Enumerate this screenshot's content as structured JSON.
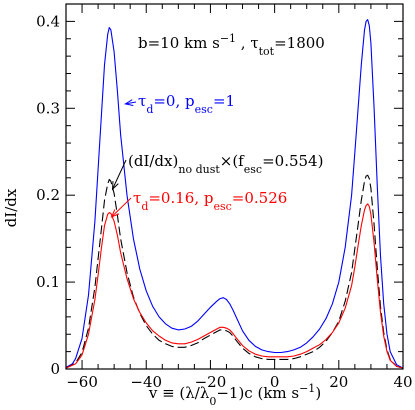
{
  "chart_data": {
    "type": "line",
    "title": "",
    "xlabel": "v ≡ (λ/λ0−1)c (km s⁻¹)",
    "ylabel": "dI/dx",
    "xlim": [
      -65,
      40
    ],
    "ylim": [
      0,
      0.42
    ],
    "xticks": [
      -60,
      -40,
      -20,
      0,
      20,
      40
    ],
    "xtick_labels": [
      "−60",
      "−40",
      "−20",
      "0",
      "20",
      "40"
    ],
    "yticks": [
      0,
      0.1,
      0.2,
      0.3,
      0.4
    ],
    "ytick_labels": [
      "0",
      "0.1",
      "0.2",
      "0.3",
      "0.4"
    ],
    "grid": false,
    "annotations": {
      "params": "b=10 km s⁻¹ , τtot=1800",
      "blue": "τd=0, pesc=1",
      "black": "(dI/dx)no dust×(fesc=0.554)",
      "red": "τd=0.16, pesc=0.526"
    },
    "series": [
      {
        "name": "τd=0, pesc=1",
        "color": "#0000ff",
        "dash": "solid",
        "x": [
          -65,
          -63,
          -62,
          -60,
          -58,
          -56,
          -55,
          -54,
          -53,
          -52,
          -51.5,
          -51,
          -50,
          -49,
          -48,
          -46,
          -44,
          -42,
          -40,
          -38,
          -36,
          -34,
          -32,
          -30,
          -28,
          -26,
          -24,
          -22,
          -20,
          -18,
          -17,
          -16,
          -15,
          -14,
          -13,
          -12,
          -10,
          -8,
          -6,
          -4,
          -2,
          0,
          2,
          4,
          6,
          8,
          10,
          12,
          14,
          16,
          18,
          20,
          22,
          24,
          25,
          26,
          27,
          28,
          28.5,
          29,
          29.5,
          30,
          31,
          32,
          33,
          34,
          35,
          36,
          38,
          40
        ],
        "y": [
          0.002,
          0.006,
          0.012,
          0.035,
          0.085,
          0.17,
          0.23,
          0.29,
          0.35,
          0.385,
          0.393,
          0.39,
          0.365,
          0.32,
          0.27,
          0.2,
          0.15,
          0.115,
          0.09,
          0.072,
          0.06,
          0.052,
          0.047,
          0.045,
          0.046,
          0.049,
          0.055,
          0.063,
          0.071,
          0.078,
          0.081,
          0.082,
          0.08,
          0.075,
          0.068,
          0.06,
          0.044,
          0.033,
          0.026,
          0.022,
          0.02,
          0.019,
          0.019,
          0.02,
          0.022,
          0.025,
          0.03,
          0.037,
          0.046,
          0.058,
          0.075,
          0.1,
          0.14,
          0.2,
          0.25,
          0.3,
          0.35,
          0.39,
          0.4,
          0.402,
          0.395,
          0.375,
          0.3,
          0.21,
          0.13,
          0.075,
          0.04,
          0.02,
          0.005,
          0.001
        ]
      },
      {
        "name": "(dI/dx)no dust×(fesc=0.554)",
        "color": "#000000",
        "dash": "dashed",
        "x": [
          -65,
          -62,
          -60,
          -58,
          -56,
          -55,
          -54,
          -53,
          -52,
          -51.5,
          -51,
          -50,
          -49,
          -48,
          -46,
          -44,
          -42,
          -40,
          -38,
          -36,
          -34,
          -32,
          -30,
          -28,
          -26,
          -24,
          -22,
          -20,
          -18,
          -17,
          -16,
          -15,
          -14,
          -13,
          -12,
          -10,
          -8,
          -6,
          -4,
          -2,
          0,
          2,
          4,
          6,
          8,
          10,
          12,
          14,
          16,
          18,
          20,
          22,
          24,
          25,
          26,
          27,
          28,
          28.5,
          29,
          29.5,
          30,
          31,
          32,
          33,
          34,
          35,
          36,
          38,
          40
        ],
        "y": [
          0.001,
          0.007,
          0.019,
          0.047,
          0.094,
          0.127,
          0.16,
          0.194,
          0.213,
          0.218,
          0.216,
          0.202,
          0.177,
          0.15,
          0.111,
          0.083,
          0.064,
          0.05,
          0.04,
          0.033,
          0.029,
          0.026,
          0.025,
          0.025,
          0.027,
          0.03,
          0.035,
          0.039,
          0.043,
          0.045,
          0.045,
          0.044,
          0.042,
          0.038,
          0.033,
          0.024,
          0.018,
          0.014,
          0.012,
          0.011,
          0.011,
          0.011,
          0.011,
          0.012,
          0.014,
          0.017,
          0.02,
          0.025,
          0.032,
          0.042,
          0.055,
          0.078,
          0.111,
          0.139,
          0.166,
          0.194,
          0.216,
          0.222,
          0.223,
          0.219,
          0.208,
          0.166,
          0.116,
          0.072,
          0.042,
          0.022,
          0.011,
          0.003,
          0.001
        ]
      },
      {
        "name": "τd=0.16, pesc=0.526",
        "color": "#ff0000",
        "dash": "solid",
        "x": [
          -65,
          -62,
          -60,
          -58,
          -56,
          -55,
          -54,
          -53,
          -52,
          -51.5,
          -51,
          -50,
          -49,
          -48,
          -46,
          -44,
          -42,
          -40,
          -38,
          -36,
          -34,
          -32,
          -30,
          -28,
          -26,
          -24,
          -22,
          -20,
          -18,
          -17,
          -16,
          -15,
          -14,
          -13,
          -12,
          -10,
          -8,
          -6,
          -4,
          -2,
          0,
          2,
          4,
          6,
          8,
          10,
          12,
          14,
          16,
          18,
          20,
          22,
          24,
          25,
          26,
          27,
          28,
          28.5,
          29,
          29.5,
          30,
          31,
          32,
          33,
          34,
          35,
          36,
          38,
          40
        ],
        "y": [
          0.001,
          0.006,
          0.016,
          0.04,
          0.08,
          0.108,
          0.138,
          0.165,
          0.178,
          0.18,
          0.179,
          0.17,
          0.154,
          0.134,
          0.104,
          0.081,
          0.065,
          0.053,
          0.044,
          0.038,
          0.033,
          0.03,
          0.029,
          0.029,
          0.031,
          0.034,
          0.038,
          0.042,
          0.046,
          0.048,
          0.048,
          0.047,
          0.045,
          0.041,
          0.036,
          0.027,
          0.021,
          0.017,
          0.015,
          0.014,
          0.014,
          0.014,
          0.014,
          0.015,
          0.017,
          0.02,
          0.024,
          0.028,
          0.034,
          0.042,
          0.053,
          0.07,
          0.096,
          0.118,
          0.142,
          0.165,
          0.183,
          0.188,
          0.19,
          0.187,
          0.178,
          0.145,
          0.103,
          0.065,
          0.038,
          0.02,
          0.01,
          0.003,
          0.001
        ]
      }
    ]
  }
}
